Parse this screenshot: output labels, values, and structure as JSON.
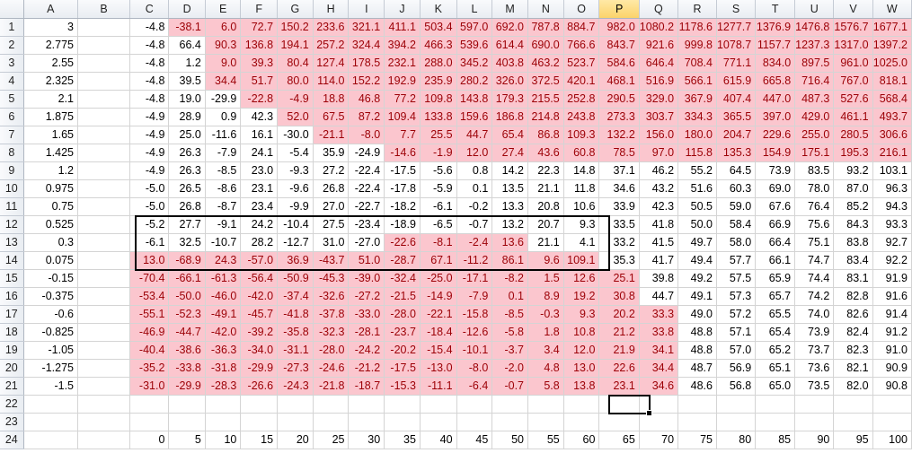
{
  "sheet": {
    "columns": [
      "A",
      "B",
      "C",
      "D",
      "E",
      "F",
      "G",
      "H",
      "I",
      "J",
      "K",
      "L",
      "M",
      "N",
      "O",
      "P",
      "Q",
      "R",
      "S",
      "T",
      "U",
      "V",
      "W"
    ],
    "active_column": "P",
    "active_cell": "P22",
    "selection_range": "C12:O14",
    "rows": [
      {
        "num": "1",
        "a": "3",
        "vals": [
          "-4.8",
          "-38.1",
          "6.0",
          "72.7",
          "150.2",
          "233.6",
          "321.1",
          "411.1",
          "503.4",
          "597.0",
          "692.0",
          "787.8",
          "884.7",
          "982.0",
          "1080.2",
          "1178.6",
          "1277.7",
          "1376.9",
          "1476.8",
          "1576.7",
          "1677.1"
        ],
        "pink_from": 1,
        "pink_to": 20
      },
      {
        "num": "2",
        "a": "2.775",
        "vals": [
          "-4.8",
          "66.4",
          "90.3",
          "136.8",
          "194.1",
          "257.2",
          "324.4",
          "394.2",
          "466.3",
          "539.6",
          "614.4",
          "690.0",
          "766.6",
          "843.7",
          "921.6",
          "999.8",
          "1078.7",
          "1157.7",
          "1237.3",
          "1317.0",
          "1397.2"
        ],
        "pink_from": 2,
        "pink_to": 20
      },
      {
        "num": "3",
        "a": "2.55",
        "vals": [
          "-4.8",
          "1.2",
          "9.0",
          "39.3",
          "80.4",
          "127.4",
          "178.5",
          "232.1",
          "288.0",
          "345.2",
          "403.8",
          "463.2",
          "523.7",
          "584.6",
          "646.4",
          "708.4",
          "771.1",
          "834.0",
          "897.5",
          "961.0",
          "1025.0"
        ],
        "pink_from": 2,
        "pink_to": 20
      },
      {
        "num": "4",
        "a": "2.325",
        "vals": [
          "-4.8",
          "39.5",
          "34.4",
          "51.7",
          "80.0",
          "114.0",
          "152.2",
          "192.9",
          "235.9",
          "280.2",
          "326.0",
          "372.5",
          "420.1",
          "468.1",
          "516.9",
          "566.1",
          "615.9",
          "665.8",
          "716.4",
          "767.0",
          "818.1"
        ],
        "pink_from": 2,
        "pink_to": 20
      },
      {
        "num": "5",
        "a": "2.1",
        "vals": [
          "-4.8",
          "19.0",
          "-29.9",
          "-22.8",
          "-4.9",
          "18.8",
          "46.8",
          "77.2",
          "109.8",
          "143.8",
          "179.3",
          "215.5",
          "252.8",
          "290.5",
          "329.0",
          "367.9",
          "407.4",
          "447.0",
          "487.3",
          "527.6",
          "568.4"
        ],
        "pink_from": 3,
        "pink_to": 20
      },
      {
        "num": "6",
        "a": "1.875",
        "vals": [
          "-4.9",
          "28.9",
          "0.9",
          "42.3",
          "52.0",
          "67.5",
          "87.2",
          "109.4",
          "133.8",
          "159.6",
          "186.8",
          "214.8",
          "243.8",
          "273.3",
          "303.7",
          "334.3",
          "365.5",
          "397.0",
          "429.0",
          "461.1",
          "493.7"
        ],
        "pink_from": 4,
        "pink_to": 20
      },
      {
        "num": "7",
        "a": "1.65",
        "vals": [
          "-4.9",
          "25.0",
          "-11.6",
          "16.1",
          "-30.0",
          "-21.1",
          "-8.0",
          "7.7",
          "25.5",
          "44.7",
          "65.4",
          "86.8",
          "109.3",
          "132.2",
          "156.0",
          "180.0",
          "204.7",
          "229.6",
          "255.0",
          "280.5",
          "306.6"
        ],
        "pink_from": 5,
        "pink_to": 20
      },
      {
        "num": "8",
        "a": "1.425",
        "vals": [
          "-4.9",
          "26.3",
          "-7.9",
          "24.1",
          "-5.4",
          "35.9",
          "-24.9",
          "-14.6",
          "-1.9",
          "12.0",
          "27.4",
          "43.6",
          "60.8",
          "78.5",
          "97.0",
          "115.8",
          "135.3",
          "154.9",
          "175.1",
          "195.3",
          "216.1"
        ],
        "pink_from": 7,
        "pink_to": 20
      },
      {
        "num": "9",
        "a": "1.2",
        "vals": [
          "-4.9",
          "26.3",
          "-8.5",
          "23.0",
          "-9.3",
          "27.2",
          "-22.4",
          "-17.5",
          "-5.6",
          "0.8",
          "14.2",
          "22.3",
          "14.8",
          "37.1",
          "46.2",
          "55.2",
          "64.5",
          "73.9",
          "83.5",
          "93.2",
          "103.1"
        ],
        "pink_from": -1,
        "pink_to": -1
      },
      {
        "num": "10",
        "a": "0.975",
        "vals": [
          "-5.0",
          "26.5",
          "-8.6",
          "23.1",
          "-9.6",
          "26.8",
          "-22.4",
          "-17.8",
          "-5.9",
          "0.1",
          "13.5",
          "21.1",
          "11.8",
          "34.6",
          "43.2",
          "51.6",
          "60.3",
          "69.0",
          "78.0",
          "87.0",
          "96.3"
        ],
        "pink_from": -1,
        "pink_to": -1
      },
      {
        "num": "11",
        "a": "0.75",
        "vals": [
          "-5.0",
          "26.8",
          "-8.7",
          "23.4",
          "-9.9",
          "27.0",
          "-22.7",
          "-18.2",
          "-6.1",
          "-0.2",
          "13.3",
          "20.8",
          "10.6",
          "33.9",
          "42.3",
          "50.5",
          "59.0",
          "67.6",
          "76.4",
          "85.2",
          "94.3"
        ],
        "pink_from": -1,
        "pink_to": -1
      },
      {
        "num": "12",
        "a": "0.525",
        "vals": [
          "-5.2",
          "27.7",
          "-9.1",
          "24.2",
          "-10.4",
          "27.5",
          "-23.4",
          "-18.9",
          "-6.5",
          "-0.7",
          "13.2",
          "20.7",
          "9.3",
          "33.5",
          "41.8",
          "50.0",
          "58.4",
          "66.9",
          "75.6",
          "84.3",
          "93.3"
        ],
        "pink_from": -1,
        "pink_to": -1
      },
      {
        "num": "13",
        "a": "0.3",
        "vals": [
          "-6.1",
          "32.5",
          "-10.7",
          "28.2",
          "-12.7",
          "31.0",
          "-27.0",
          "-22.6",
          "-8.1",
          "-2.4",
          "13.6",
          "21.1",
          "4.1",
          "33.2",
          "41.5",
          "49.7",
          "58.0",
          "66.4",
          "75.1",
          "83.8",
          "92.7"
        ],
        "pink_from": 7,
        "pink_to": 10
      },
      {
        "num": "14",
        "a": "0.075",
        "vals": [
          "13.0",
          "-68.9",
          "24.3",
          "-57.0",
          "36.9",
          "-43.7",
          "51.0",
          "-28.7",
          "67.1",
          "-11.2",
          "86.1",
          "9.6",
          "109.1",
          "35.3",
          "41.7",
          "49.4",
          "57.7",
          "66.1",
          "74.7",
          "83.4",
          "92.2"
        ],
        "pink_from": 0,
        "pink_to": 12
      },
      {
        "num": "15",
        "a": "-0.15",
        "vals": [
          "-70.4",
          "-66.1",
          "-61.3",
          "-56.4",
          "-50.9",
          "-45.3",
          "-39.0",
          "-32.4",
          "-25.0",
          "-17.1",
          "-8.2",
          "1.5",
          "12.6",
          "25.1",
          "39.8",
          "49.2",
          "57.5",
          "65.9",
          "74.4",
          "83.1",
          "91.9"
        ],
        "pink_from": 0,
        "pink_to": 13
      },
      {
        "num": "16",
        "a": "-0.375",
        "vals": [
          "-53.4",
          "-50.0",
          "-46.0",
          "-42.0",
          "-37.4",
          "-32.6",
          "-27.2",
          "-21.5",
          "-14.9",
          "-7.9",
          "0.1",
          "8.9",
          "19.2",
          "30.8",
          "44.7",
          "49.1",
          "57.3",
          "65.7",
          "74.2",
          "82.8",
          "91.6"
        ],
        "pink_from": 0,
        "pink_to": 13
      },
      {
        "num": "17",
        "a": "-0.6",
        "vals": [
          "-55.1",
          "-52.3",
          "-49.1",
          "-45.7",
          "-41.8",
          "-37.8",
          "-33.0",
          "-28.0",
          "-22.1",
          "-15.8",
          "-8.5",
          "-0.3",
          "9.3",
          "20.2",
          "33.3",
          "49.0",
          "57.2",
          "65.5",
          "74.0",
          "82.6",
          "91.4"
        ],
        "pink_from": 0,
        "pink_to": 14
      },
      {
        "num": "18",
        "a": "-0.825",
        "vals": [
          "-46.9",
          "-44.7",
          "-42.0",
          "-39.2",
          "-35.8",
          "-32.3",
          "-28.1",
          "-23.7",
          "-18.4",
          "-12.6",
          "-5.8",
          "1.8",
          "10.8",
          "21.2",
          "33.8",
          "48.8",
          "57.1",
          "65.4",
          "73.9",
          "82.4",
          "91.2"
        ],
        "pink_from": 0,
        "pink_to": 14
      },
      {
        "num": "19",
        "a": "-1.05",
        "vals": [
          "-40.4",
          "-38.6",
          "-36.3",
          "-34.0",
          "-31.1",
          "-28.0",
          "-24.2",
          "-20.2",
          "-15.4",
          "-10.1",
          "-3.7",
          "3.4",
          "12.0",
          "21.9",
          "34.1",
          "48.8",
          "57.0",
          "65.2",
          "73.7",
          "82.3",
          "91.0"
        ],
        "pink_from": 0,
        "pink_to": 14
      },
      {
        "num": "20",
        "a": "-1.275",
        "vals": [
          "-35.2",
          "-33.8",
          "-31.8",
          "-29.9",
          "-27.3",
          "-24.6",
          "-21.2",
          "-17.5",
          "-13.0",
          "-8.0",
          "-2.0",
          "4.8",
          "13.0",
          "22.6",
          "34.4",
          "48.7",
          "56.9",
          "65.1",
          "73.6",
          "82.1",
          "90.9"
        ],
        "pink_from": 0,
        "pink_to": 14
      },
      {
        "num": "21",
        "a": "-1.5",
        "vals": [
          "-31.0",
          "-29.9",
          "-28.3",
          "-26.6",
          "-24.3",
          "-21.8",
          "-18.7",
          "-15.3",
          "-11.1",
          "-6.4",
          "-0.7",
          "5.8",
          "13.8",
          "23.1",
          "34.6",
          "48.6",
          "56.8",
          "65.0",
          "73.5",
          "82.0",
          "90.8"
        ],
        "pink_from": 0,
        "pink_to": 14
      },
      {
        "num": "22",
        "a": "",
        "vals": [
          "",
          "",
          "",
          "",
          "",
          "",
          "",
          "",
          "",
          "",
          "",
          "",
          "",
          "",
          "",
          "",
          "",
          "",
          "",
          "",
          ""
        ],
        "pink_from": -1,
        "pink_to": -1
      },
      {
        "num": "23",
        "a": "",
        "vals": [
          "",
          "",
          "",
          "",
          "",
          "",
          "",
          "",
          "",
          "",
          "",
          "",
          "",
          "",
          "",
          "",
          "",
          "",
          "",
          "",
          ""
        ],
        "pink_from": -1,
        "pink_to": -1
      },
      {
        "num": "24",
        "a": "",
        "vals": [
          "0",
          "5",
          "10",
          "15",
          "20",
          "25",
          "30",
          "35",
          "40",
          "45",
          "50",
          "55",
          "60",
          "65",
          "70",
          "75",
          "80",
          "85",
          "90",
          "95",
          "100"
        ],
        "pink_from": -1,
        "pink_to": -1
      }
    ],
    "pink_bg": "#fbc6ce",
    "pink_text": "#9c0006"
  }
}
